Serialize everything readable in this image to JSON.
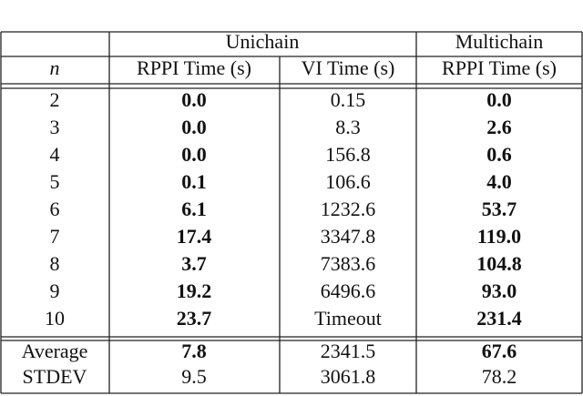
{
  "table": {
    "header": {
      "groups": [
        "Unichain",
        "Multichain"
      ],
      "columns": [
        "n",
        "RPPI Time (s)",
        "VI Time (s)",
        "RPPI Time (s)"
      ]
    },
    "rows": [
      [
        "2",
        "0.0",
        "0.15",
        "0.0"
      ],
      [
        "3",
        "0.0",
        "8.3",
        "2.6"
      ],
      [
        "4",
        "0.0",
        "156.8",
        "0.6"
      ],
      [
        "5",
        "0.1",
        "106.6",
        "4.0"
      ],
      [
        "6",
        "6.1",
        "1232.6",
        "53.7"
      ],
      [
        "7",
        "17.4",
        "3347.8",
        "119.0"
      ],
      [
        "8",
        "3.7",
        "7383.6",
        "104.8"
      ],
      [
        "9",
        "19.2",
        "6496.6",
        "93.0"
      ],
      [
        "10",
        "23.7",
        "Timeout",
        "231.4"
      ]
    ],
    "summary": [
      [
        "Average",
        "7.8",
        "2341.5",
        "67.6"
      ],
      [
        "STDEV",
        "9.5",
        "3061.8",
        "78.2"
      ]
    ]
  }
}
